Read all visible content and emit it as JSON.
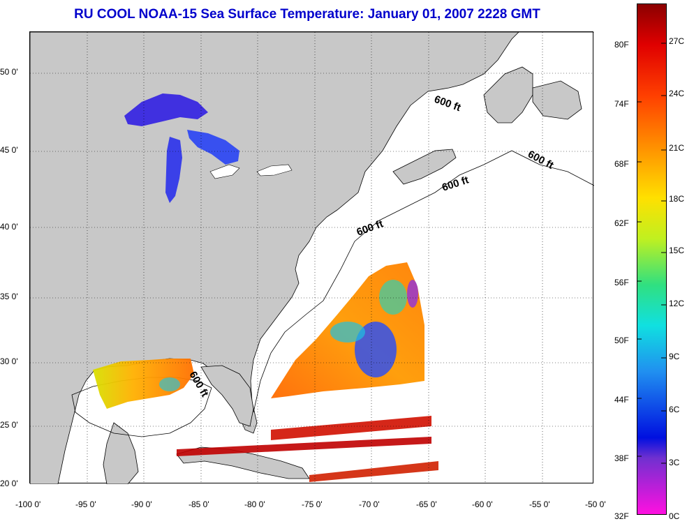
{
  "title": "RU COOL  NOAA-15  Sea Surface Temperature:  January 01, 2007 2228 GMT",
  "map": {
    "lat_labels": [
      "50 0'",
      "45 0'",
      "40 0'",
      "35 0'",
      "30 0'",
      "25 0'",
      "20 0'"
    ],
    "lon_labels": [
      "-100 0'",
      "-95 0'",
      "-90 0'",
      "-85 0'",
      "-80 0'",
      "-75 0'",
      "-70 0'",
      "-65 0'",
      "-60 0'",
      "-55 0'",
      "-50 0'"
    ],
    "isobath_labels": [
      "600 ft",
      "600 ft",
      "600 ft",
      "600 ft",
      "600 ft"
    ],
    "land_color": "#c8c8c8",
    "ocean_color": "#ffffff"
  },
  "colorbar": {
    "fahrenheit": [
      "80F",
      "74F",
      "68F",
      "62F",
      "56F",
      "50F",
      "44F",
      "38F",
      "32F"
    ],
    "celsius": [
      "27C",
      "24C",
      "21C",
      "18C",
      "15C",
      "12C",
      "9C",
      "6C",
      "3C",
      "0C"
    ]
  }
}
